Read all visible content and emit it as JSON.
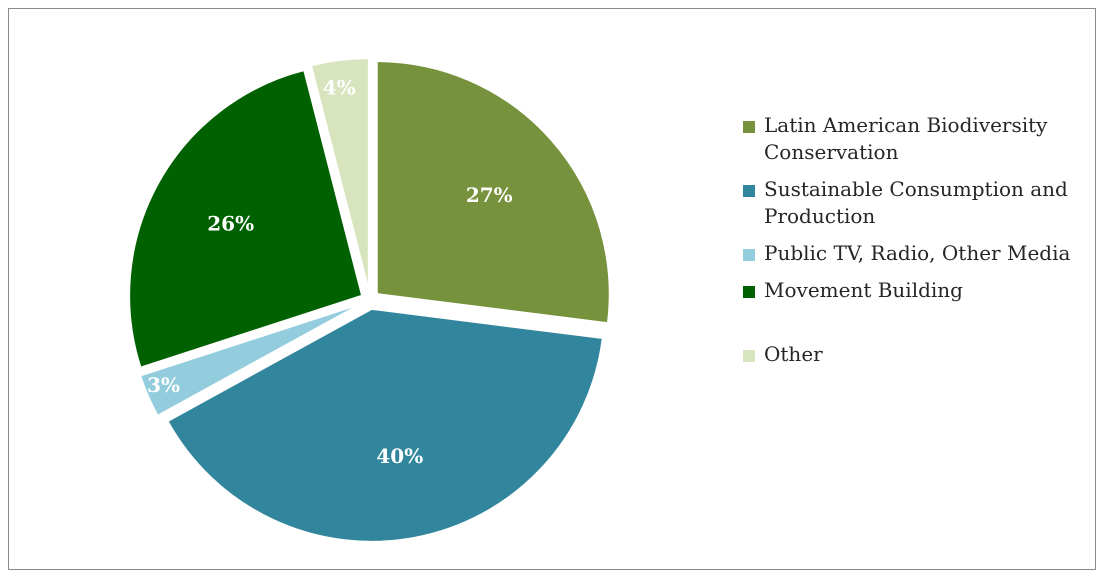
{
  "chart_data": {
    "type": "pie",
    "exploded": true,
    "legend_position": "right",
    "slices": [
      {
        "label": "Latin American Biodiversity Conservation",
        "value": 27,
        "value_label": "27%",
        "color": "#77923c"
      },
      {
        "label": "Sustainable Consumption and Production",
        "value": 40,
        "value_label": "40%",
        "color": "#31859c"
      },
      {
        "label": "Public TV, Radio, Other Media",
        "value": 3,
        "value_label": "3%",
        "color": "#93cddd"
      },
      {
        "label": "Movement Building",
        "value": 26,
        "value_label": "26%",
        "color": "#006100"
      },
      {
        "label": "Other",
        "value": 4,
        "value_label": "4%",
        "color": "#d7e4bd"
      }
    ]
  }
}
